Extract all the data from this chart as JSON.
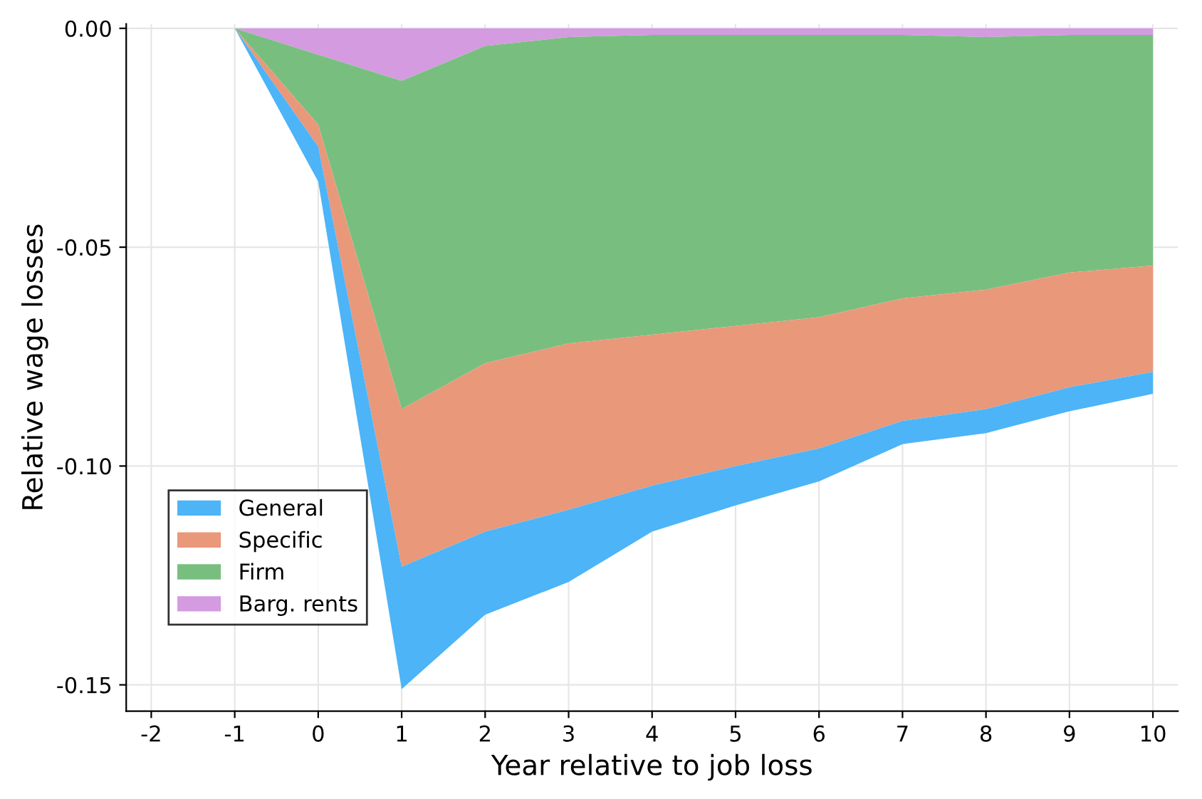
{
  "chart_data": {
    "type": "area",
    "stacked": true,
    "xlabel": "Year relative to job loss",
    "ylabel": "Relative wage losses",
    "x": [
      -2,
      -1,
      0,
      1,
      2,
      3,
      4,
      5,
      6,
      7,
      8,
      9,
      10
    ],
    "series": [
      {
        "name": "Barg. rents",
        "color": "#d49be0",
        "values": [
          0,
          0,
          -0.006,
          -0.012,
          -0.004,
          -0.002,
          -0.0015,
          -0.0015,
          -0.0015,
          -0.0015,
          -0.002,
          -0.0015,
          -0.0015
        ]
      },
      {
        "name": "Firm",
        "color": "#78bf7f",
        "values": [
          0,
          0,
          -0.016,
          -0.075,
          -0.0725,
          -0.07,
          -0.0685,
          -0.0665,
          -0.0645,
          -0.0602,
          -0.0577,
          -0.0543,
          -0.0527
        ]
      },
      {
        "name": "Specific",
        "color": "#e9987a",
        "values": [
          0,
          0,
          -0.005,
          -0.036,
          -0.0385,
          -0.038,
          -0.0345,
          -0.032,
          -0.03,
          -0.028,
          -0.0273,
          -0.0262,
          -0.0243
        ]
      },
      {
        "name": "General",
        "color": "#4cb4f7",
        "values": [
          0,
          0,
          -0.008,
          -0.028,
          -0.019,
          -0.0165,
          -0.0105,
          -0.009,
          -0.0075,
          -0.0053,
          -0.0055,
          -0.0055,
          -0.005
        ]
      }
    ],
    "xlim": [
      -2.3,
      10.3
    ],
    "xticks": [
      -2,
      -1,
      0,
      1,
      2,
      3,
      4,
      5,
      6,
      7,
      8,
      9,
      10
    ],
    "ylim": [
      -0.156,
      0.001
    ],
    "yticks": [
      {
        "value": 0,
        "label": "0.00"
      },
      {
        "value": -0.05,
        "label": "-0.05"
      },
      {
        "value": -0.1,
        "label": "-0.10"
      },
      {
        "value": -0.15,
        "label": "-0.15"
      }
    ],
    "grid": true,
    "legend": "bottom left"
  }
}
